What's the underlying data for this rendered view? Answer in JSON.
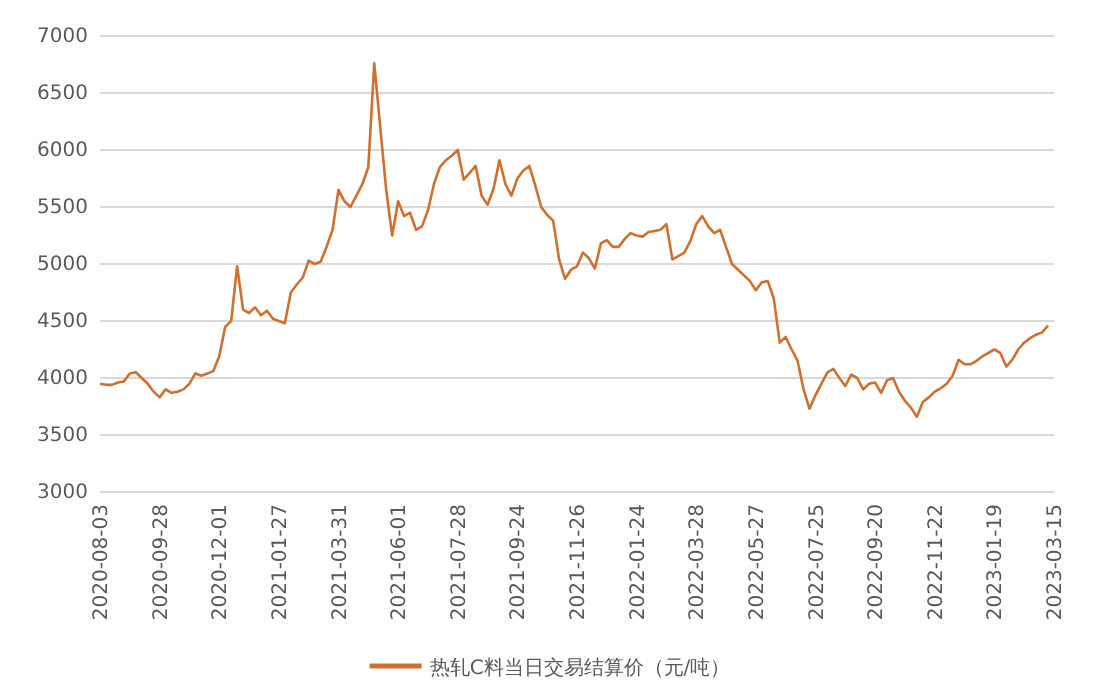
{
  "chart_data": {
    "type": "line",
    "categories": [
      "2020-08-03",
      null,
      null,
      null,
      null,
      null,
      null,
      null,
      null,
      null,
      "2020-09-28",
      null,
      null,
      null,
      null,
      null,
      null,
      null,
      null,
      null,
      "2020-12-01",
      null,
      null,
      null,
      null,
      null,
      null,
      null,
      null,
      null,
      "2021-01-27",
      null,
      null,
      null,
      null,
      null,
      null,
      null,
      null,
      null,
      "2021-03-31",
      null,
      null,
      null,
      null,
      null,
      null,
      null,
      null,
      null,
      "2021-06-01",
      null,
      null,
      null,
      null,
      null,
      null,
      null,
      null,
      null,
      "2021-07-28",
      null,
      null,
      null,
      null,
      null,
      null,
      null,
      null,
      null,
      "2021-09-24",
      null,
      null,
      null,
      null,
      null,
      null,
      null,
      null,
      null,
      "2021-11-26",
      null,
      null,
      null,
      null,
      null,
      null,
      null,
      null,
      null,
      "2022-01-24",
      null,
      null,
      null,
      null,
      null,
      null,
      null,
      null,
      null,
      "2022-03-28",
      null,
      null,
      null,
      null,
      null,
      null,
      null,
      null,
      null,
      "2022-05-27",
      null,
      null,
      null,
      null,
      null,
      null,
      null,
      null,
      null,
      "2022-07-25",
      null,
      null,
      null,
      null,
      null,
      null,
      null,
      null,
      null,
      "2022-09-20",
      null,
      null,
      null,
      null,
      null,
      null,
      null,
      null,
      null,
      "2022-11-22",
      null,
      null,
      null,
      null,
      null,
      null,
      null,
      null,
      null,
      "2023-01-19",
      null,
      null,
      null,
      null,
      null,
      null,
      null,
      null,
      null,
      "2023-03-15"
    ],
    "series": [
      {
        "name": "热轧C料当日交易结算价（元/吨）",
        "color": "#d0702e",
        "values": [
          3950,
          3940,
          3940,
          3960,
          3970,
          4040,
          4050,
          4000,
          3950,
          3880,
          3830,
          3900,
          3870,
          3880,
          3900,
          3950,
          4040,
          4020,
          4040,
          4060,
          4190,
          4450,
          4500,
          4980,
          4600,
          4570,
          4620,
          4550,
          4590,
          4520,
          4500,
          4480,
          4750,
          4820,
          4880,
          5030,
          5000,
          5020,
          5150,
          5300,
          5650,
          5550,
          5500,
          5600,
          5700,
          5850,
          6760,
          6200,
          5650,
          5250,
          5550,
          5420,
          5450,
          5300,
          5330,
          5470,
          5700,
          5850,
          5910,
          5950,
          6000,
          5740,
          5800,
          5860,
          5600,
          5520,
          5660,
          5910,
          5700,
          5600,
          5750,
          5820,
          5860,
          5690,
          5500,
          5430,
          5380,
          5040,
          4870,
          4950,
          4980,
          5100,
          5050,
          4960,
          5180,
          5210,
          5150,
          5150,
          5220,
          5270,
          5250,
          5240,
          5280,
          5290,
          5300,
          5350,
          5040,
          5070,
          5100,
          5200,
          5350,
          5420,
          5330,
          5270,
          5300,
          5150,
          5000,
          4950,
          4900,
          4850,
          4770,
          4840,
          4850,
          4700,
          4310,
          4360,
          4250,
          4150,
          3900,
          3730,
          3850,
          3950,
          4050,
          4080,
          4000,
          3930,
          4030,
          4000,
          3900,
          3950,
          3960,
          3870,
          3980,
          4000,
          3880,
          3800,
          3740,
          3660,
          3790,
          3830,
          3880,
          3910,
          3950,
          4020,
          4160,
          4120,
          4120,
          4150,
          4190,
          4220,
          4250,
          4220,
          4100,
          4160,
          4250,
          4310,
          4350,
          4380,
          4400,
          4460,
          null
        ]
      }
    ],
    "ylim": [
      3000,
      7000
    ],
    "yticks": [
      3000,
      3500,
      4000,
      4500,
      5000,
      5500,
      6000,
      6500,
      7000
    ],
    "grid": "y",
    "legend": "bottom"
  }
}
